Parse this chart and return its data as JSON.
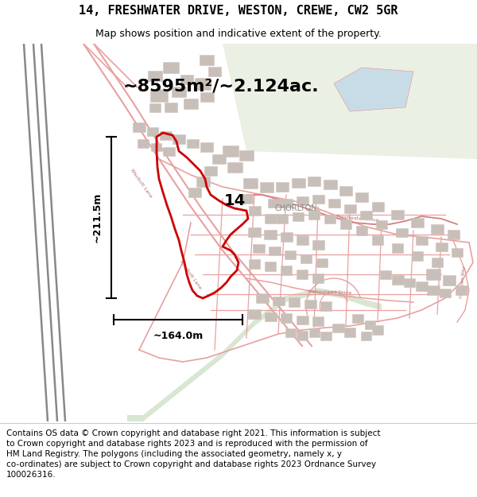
{
  "title_line1": "14, FRESHWATER DRIVE, WESTON, CREWE, CW2 5GR",
  "title_line2": "Map shows position and indicative extent of the property.",
  "area_label": "~8595m²/~2.124ac.",
  "label_14": "14",
  "label_chorlton": "CHORLTON",
  "dim_vertical": "~211.5m",
  "dim_horizontal": "~164.0m",
  "footer_text": "Contains OS data © Crown copyright and database right 2021. This information is subject to Crown copyright and database rights 2023 and is reproduced with the permission of HM Land Registry. The polygons (including the associated geometry, namely x, y co-ordinates) are subject to Crown copyright and database rights 2023 Ordnance Survey 100026316.",
  "map_bg": "#f7f5f2",
  "property_color": "#cc0000",
  "road_color": "#e8a0a0",
  "road_color2": "#d48080",
  "building_color": "#c8c0b8",
  "building_edge": "#d0c8c0",
  "water_color": "#c8dce8",
  "green_color": "#d4e8d0",
  "stream_color": "#c8dcc0",
  "title_fontsize": 11,
  "subtitle_fontsize": 9,
  "area_fontsize": 16,
  "footer_fontsize": 7.5,
  "fig_width": 6.0,
  "fig_height": 6.25,
  "dpi": 100
}
